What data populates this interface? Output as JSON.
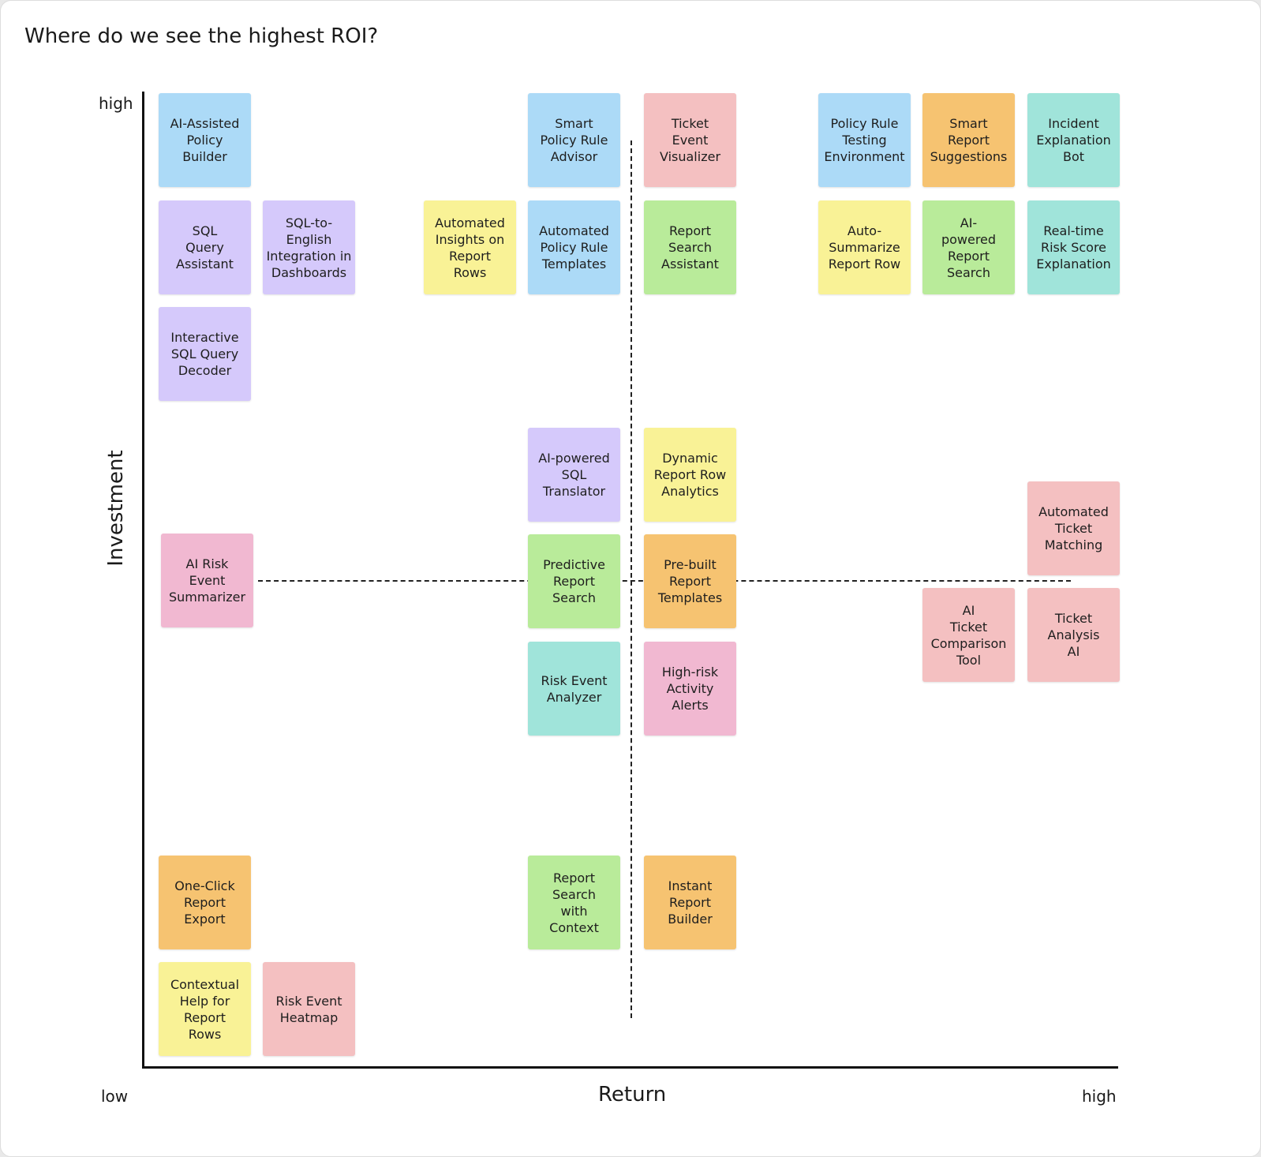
{
  "title": "Where do we see the highest ROI?",
  "axes": {
    "y_title": "Investment",
    "y_high": "high",
    "x_title": "Return",
    "x_low": "low",
    "x_high": "high"
  },
  "colors": {
    "blue": "#acdaf7",
    "purple": "#d5c9fb",
    "yellow": "#f9f296",
    "green": "#b9eb9a",
    "pink": "#f4c0c1",
    "orange": "#f6c371",
    "teal": "#a0e4da",
    "magenta": "#f1b8d1"
  },
  "notes": {
    "n01": "AI-Assisted\nPolicy\nBuilder",
    "n02": "SQL\nQuery\nAssistant",
    "n03": "SQL-to-\nEnglish\nIntegration in\nDashboards",
    "n04": "Interactive\nSQL Query\nDecoder",
    "n05": "Automated\nInsights on\nReport\nRows",
    "n06": "Smart\nPolicy Rule\nAdvisor",
    "n07": "Automated\nPolicy Rule\nTemplates",
    "n08": "Ticket\nEvent\nVisualizer",
    "n09": "Report\nSearch\nAssistant",
    "n10": "Policy Rule\nTesting\nEnvironment",
    "n11": "Smart\nReport\nSuggestions",
    "n12": "Incident\nExplanation\nBot",
    "n13": "Auto-\nSummarize\nReport Row",
    "n14": "AI-\npowered\nReport\nSearch",
    "n15": "Real-time\nRisk Score\nExplanation",
    "n16": "AI-powered\nSQL\nTranslator",
    "n17": "Dynamic\nReport Row\nAnalytics",
    "n18": "Automated\nTicket\nMatching",
    "n19": "AI Risk\nEvent\nSummarizer",
    "n20": "Predictive\nReport\nSearch",
    "n21": "Pre-built\nReport\nTemplates",
    "n22": "AI\nTicket\nComparison\nTool",
    "n23": "Ticket\nAnalysis\nAI",
    "n24": "Risk Event\nAnalyzer",
    "n25": "High-risk\nActivity\nAlerts",
    "n26": "One-Click\nReport\nExport",
    "n27": "Report\nSearch\nwith\nContext",
    "n28": "Instant\nReport\nBuilder",
    "n29": "Contextual\nHelp for\nReport\nRows",
    "n30": "Risk Event\nHeatmap"
  }
}
